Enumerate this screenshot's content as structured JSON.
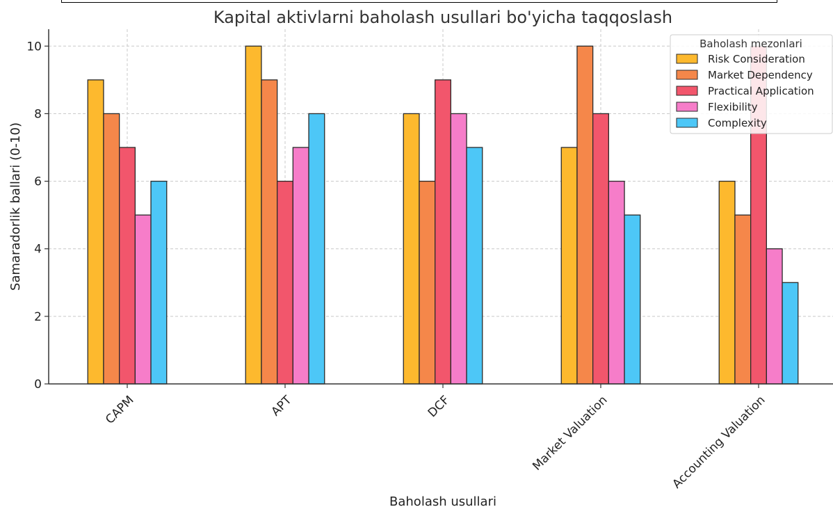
{
  "chart_data": {
    "type": "bar",
    "title": "Kapital aktivlarni baholash usullari bo'yicha taqqoslash",
    "xlabel": "Baholash usullari",
    "ylabel": "Samaradorlik ballari (0-10)",
    "ylim": [
      0,
      10.5
    ],
    "yticks": [
      0,
      2,
      4,
      6,
      8,
      10
    ],
    "grid": true,
    "legend_title": "Baholash mezonlari",
    "legend_placement": "top-right",
    "categories": [
      "CAPM",
      "APT",
      "DCF",
      "Market Valuation",
      "Accounting Valuation"
    ],
    "series": [
      {
        "name": "Risk Consideration",
        "color": "#FDB92E",
        "values": [
          9,
          10,
          8,
          7,
          6
        ]
      },
      {
        "name": "Market Dependency",
        "color": "#F5874A",
        "values": [
          8,
          9,
          6,
          10,
          5
        ]
      },
      {
        "name": "Practical Application",
        "color": "#F2566C",
        "values": [
          7,
          6,
          9,
          8,
          10
        ]
      },
      {
        "name": "Flexibility",
        "color": "#F67DC9",
        "values": [
          5,
          7,
          8,
          6,
          4
        ]
      },
      {
        "name": "Complexity",
        "color": "#4DC7F7",
        "values": [
          6,
          8,
          7,
          5,
          3
        ]
      }
    ]
  }
}
